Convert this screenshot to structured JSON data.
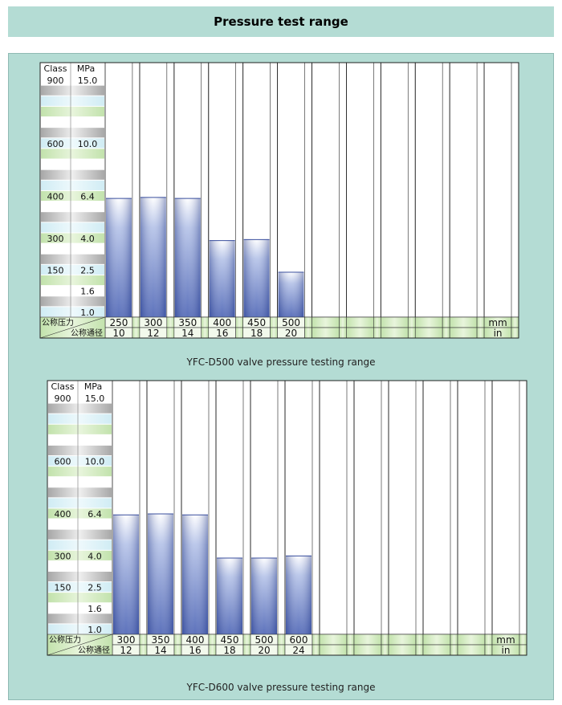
{
  "page": {
    "title": "Pressure test range"
  },
  "colors": {
    "panel": "#b4dcd4",
    "bar_blue": "#4a62b4",
    "band_green": "#c2e2ac",
    "band_blue": "#d0ecf4",
    "band_gray": "#c4c4c4"
  },
  "scale": {
    "header": [
      "Class",
      "MPa"
    ],
    "rows": [
      {
        "class": "900",
        "mpa": "15.0",
        "band": "white"
      },
      {
        "class": "",
        "mpa": "",
        "band": "gray"
      },
      {
        "class": "",
        "mpa": "",
        "band": "blue"
      },
      {
        "class": "",
        "mpa": "",
        "band": "green"
      },
      {
        "class": "",
        "mpa": "",
        "band": "white"
      },
      {
        "class": "",
        "mpa": "",
        "band": "gray"
      },
      {
        "class": "600",
        "mpa": "10.0",
        "band": "blue"
      },
      {
        "class": "",
        "mpa": "",
        "band": "green"
      },
      {
        "class": "",
        "mpa": "",
        "band": "white"
      },
      {
        "class": "",
        "mpa": "",
        "band": "gray"
      },
      {
        "class": "",
        "mpa": "",
        "band": "blue"
      },
      {
        "class": "400",
        "mpa": "6.4",
        "band": "green"
      },
      {
        "class": "",
        "mpa": "",
        "band": "white"
      },
      {
        "class": "",
        "mpa": "",
        "band": "gray"
      },
      {
        "class": "",
        "mpa": "",
        "band": "blue"
      },
      {
        "class": "300",
        "mpa": "4.0",
        "band": "green"
      },
      {
        "class": "",
        "mpa": "",
        "band": "white"
      },
      {
        "class": "",
        "mpa": "",
        "band": "gray"
      },
      {
        "class": "150",
        "mpa": "2.5",
        "band": "blue"
      },
      {
        "class": "",
        "mpa": "",
        "band": "green"
      },
      {
        "class": "",
        "mpa": "1.6",
        "band": "white"
      },
      {
        "class": "",
        "mpa": "",
        "band": "gray"
      },
      {
        "class": "",
        "mpa": "1.0",
        "band": "blue"
      }
    ]
  },
  "chart_data": [
    {
      "type": "bar",
      "caption": "YFC-D500 valve pressure testing range",
      "row_labels": [
        "公称压力",
        "公称通径"
      ],
      "units": [
        "mm",
        "in"
      ],
      "categories_mm": [
        "250",
        "300",
        "350",
        "400",
        "450",
        "500"
      ],
      "categories_in": [
        "10",
        "12",
        "14",
        "16",
        "18",
        "20"
      ],
      "columns": 12,
      "scale_rows": 23,
      "fill_rows": [
        11.3,
        11.4,
        11.3,
        7.3,
        7.4,
        4.3
      ]
    },
    {
      "type": "bar",
      "caption": "YFC-D600 valve pressure testing range",
      "row_labels": [
        "公称压力",
        "公称通径"
      ],
      "units": [
        "mm",
        "in"
      ],
      "categories_mm": [
        "300",
        "350",
        "400",
        "450",
        "500",
        "600"
      ],
      "categories_in": [
        "12",
        "14",
        "16",
        "18",
        "20",
        "24"
      ],
      "columns": 12,
      "scale_rows": 23,
      "fill_rows": [
        11.4,
        11.5,
        11.4,
        7.3,
        7.3,
        7.5
      ]
    }
  ]
}
